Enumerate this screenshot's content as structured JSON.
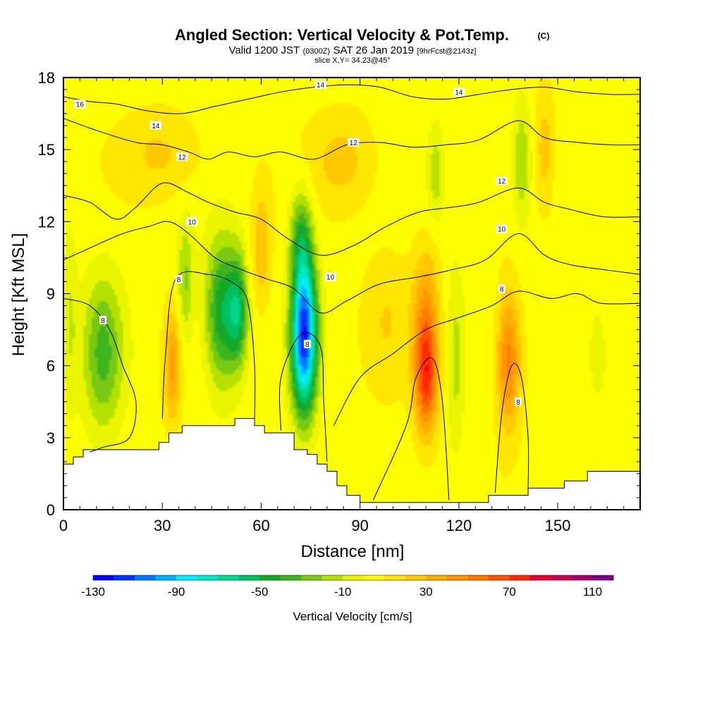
{
  "title": {
    "main": "Angled Section: Vertical Velocity & Pot.Temp.",
    "units": "(C)",
    "valid_prefix": "Valid 1200 JST",
    "valid_z": "(0300Z)",
    "valid_date": "SAT 26 Jan 2019",
    "forecast": "[9hrFcst@2143z]",
    "slice": "slice X,Y= 34.23@45°"
  },
  "chart_data": {
    "type": "heatmap",
    "xlabel": "Distance [nm]",
    "ylabel": "Height [Kft MSL]",
    "xlim": [
      0,
      175
    ],
    "ylim": [
      0,
      18
    ],
    "x_ticks": [
      0,
      30,
      60,
      90,
      120,
      150
    ],
    "y_ticks": [
      0,
      3,
      6,
      9,
      12,
      15,
      18
    ],
    "colorbar": {
      "title": "Vertical Velocity [cm/s]",
      "tick_labels": [
        "-130",
        "-90",
        "-50",
        "-10",
        "30",
        "70",
        "110"
      ],
      "bin_edges": [
        -130,
        -120,
        -110,
        -100,
        -90,
        -80,
        -70,
        -60,
        -50,
        -40,
        -30,
        -20,
        -10,
        0,
        10,
        20,
        30,
        40,
        50,
        60,
        70,
        80,
        90,
        100,
        110,
        120
      ],
      "colors": [
        "#0000ff",
        "#0033ff",
        "#0077ff",
        "#00b0ff",
        "#00eeff",
        "#00e8c8",
        "#00d890",
        "#00c060",
        "#14a828",
        "#3cb41e",
        "#78c814",
        "#b4e100",
        "#ebf500",
        "#ffff00",
        "#ffe600",
        "#ffc800",
        "#ffaf00",
        "#ff9600",
        "#ff7800",
        "#ff5000",
        "#ff2800",
        "#e6002d",
        "#c80055",
        "#a00069",
        "#780082"
      ]
    },
    "vertical_velocity_features": [
      {
        "x": 12,
        "y": 6.5,
        "sx": 6,
        "sy": 3.2,
        "value": -38
      },
      {
        "x": 33,
        "y": 6,
        "sx": 2.5,
        "sy": 2.3,
        "value": 35
      },
      {
        "x": 37,
        "y": 9.5,
        "sx": 2.5,
        "sy": 2.5,
        "value": -28
      },
      {
        "x": 48,
        "y": 8.2,
        "sx": 5,
        "sy": 3,
        "value": -55
      },
      {
        "x": 53,
        "y": 8.3,
        "sx": 3,
        "sy": 2.3,
        "value": -48
      },
      {
        "x": 73,
        "y": 7.3,
        "sx": 3.8,
        "sy": 3.2,
        "value": -125
      },
      {
        "x": 72,
        "y": 11.5,
        "sx": 3.5,
        "sy": 2,
        "value": -35
      },
      {
        "x": 60,
        "y": 11,
        "sx": 3,
        "sy": 2.5,
        "value": 22
      },
      {
        "x": 85,
        "y": 14.5,
        "sx": 10,
        "sy": 2,
        "value": 18
      },
      {
        "x": 30,
        "y": 14.8,
        "sx": 12,
        "sy": 1.8,
        "value": 16
      },
      {
        "x": 110,
        "y": 5.5,
        "sx": 3.5,
        "sy": 2.3,
        "value": 65
      },
      {
        "x": 110,
        "y": 8.5,
        "sx": 4,
        "sy": 2.5,
        "value": 30
      },
      {
        "x": 119,
        "y": 6.2,
        "sx": 2.5,
        "sy": 4,
        "value": -18
      },
      {
        "x": 113,
        "y": 14,
        "sx": 2.5,
        "sy": 2,
        "value": -22
      },
      {
        "x": 135,
        "y": 6.2,
        "sx": 3.5,
        "sy": 2.8,
        "value": 48
      },
      {
        "x": 139,
        "y": 14.5,
        "sx": 3,
        "sy": 2.5,
        "value": -25
      },
      {
        "x": 146,
        "y": 15,
        "sx": 3,
        "sy": 2.5,
        "value": 20
      },
      {
        "x": 162,
        "y": 6.5,
        "sx": 3,
        "sy": 2,
        "value": -15
      },
      {
        "x": 2,
        "y": 8,
        "sx": 2,
        "sy": 4,
        "value": -15
      },
      {
        "x": 98,
        "y": 8,
        "sx": 7,
        "sy": 3,
        "value": 12
      }
    ],
    "terrain_steps": [
      [
        0,
        1.9
      ],
      [
        3,
        2.2
      ],
      [
        6,
        2.5
      ],
      [
        10,
        2.5
      ],
      [
        15,
        2.5
      ],
      [
        20,
        2.5
      ],
      [
        25,
        2.5
      ],
      [
        29,
        2.8
      ],
      [
        32,
        3.2
      ],
      [
        36,
        3.5
      ],
      [
        40,
        3.5
      ],
      [
        45,
        3.5
      ],
      [
        52,
        3.8
      ],
      [
        58,
        3.5
      ],
      [
        61,
        3.2
      ],
      [
        65,
        3.2
      ],
      [
        70,
        2.5
      ],
      [
        74,
        2.3
      ],
      [
        77,
        1.9
      ],
      [
        80,
        1.6
      ],
      [
        83,
        1.0
      ],
      [
        86,
        0.6
      ],
      [
        90,
        0.3
      ],
      [
        95,
        0.3
      ],
      [
        100,
        0.3
      ],
      [
        105,
        0.3
      ],
      [
        110,
        0.3
      ],
      [
        120,
        0.3
      ],
      [
        129,
        0.6
      ],
      [
        135,
        0.6
      ],
      [
        141,
        0.9
      ],
      [
        152,
        1.2
      ],
      [
        159,
        1.6
      ],
      [
        175,
        1.6
      ]
    ],
    "pot_temp_contours": [
      {
        "level": "8",
        "points": [
          [
            0,
            8.8
          ],
          [
            8,
            8.5
          ],
          [
            14,
            7.5
          ],
          [
            18,
            6
          ],
          [
            22,
            4.5
          ],
          [
            20,
            3
          ],
          [
            12,
            2.6
          ],
          [
            8,
            2.4
          ]
        ]
      },
      {
        "level": "8",
        "points": [
          [
            30,
            3.8
          ],
          [
            31,
            6.5
          ],
          [
            34,
            9.6
          ],
          [
            44,
            9.8
          ],
          [
            52,
            9.4
          ],
          [
            56,
            8.6
          ],
          [
            58,
            6
          ],
          [
            58,
            3.8
          ]
        ]
      },
      {
        "level": "8",
        "points": [
          [
            66,
            3.3
          ],
          [
            66,
            5.5
          ],
          [
            72,
            7.3
          ],
          [
            78,
            6.8
          ],
          [
            79,
            4.5
          ],
          [
            80,
            2
          ]
        ]
      },
      {
        "level": "8",
        "points": [
          [
            82,
            3.5
          ],
          [
            90,
            5.5
          ],
          [
            100,
            6.5
          ],
          [
            110,
            7.5
          ],
          [
            120,
            8
          ],
          [
            130,
            8.5
          ],
          [
            138,
            9.1
          ],
          [
            148,
            8.8
          ],
          [
            156,
            9
          ],
          [
            163,
            8.6
          ],
          [
            175,
            8.6
          ]
        ]
      },
      {
        "level": "8",
        "points": [
          [
            94,
            0.4
          ],
          [
            104,
            3.5
          ],
          [
            107,
            5.5
          ],
          [
            112,
            6.3
          ],
          [
            115,
            4.5
          ],
          [
            117,
            0.4
          ]
        ]
      },
      {
        "level": "8",
        "points": [
          [
            131,
            0.7
          ],
          [
            133,
            4
          ],
          [
            136,
            6
          ],
          [
            139,
            5.5
          ],
          [
            141,
            3
          ],
          [
            141,
            0.9
          ]
        ]
      },
      {
        "level": "10",
        "points": [
          [
            0,
            10.4
          ],
          [
            8,
            10.9
          ],
          [
            18,
            11.5
          ],
          [
            26,
            11.8
          ],
          [
            32,
            12
          ],
          [
            38,
            11.5
          ],
          [
            46,
            10.5
          ],
          [
            54,
            10
          ],
          [
            62,
            9.6
          ],
          [
            70,
            9.2
          ],
          [
            78,
            8.2
          ],
          [
            86,
            8.7
          ],
          [
            96,
            9.4
          ],
          [
            108,
            9.7
          ],
          [
            118,
            10
          ],
          [
            128,
            10.4
          ],
          [
            138,
            11.5
          ],
          [
            146,
            10.6
          ],
          [
            154,
            10.2
          ],
          [
            164,
            10
          ],
          [
            175,
            9.8
          ]
        ]
      },
      {
        "level": "12",
        "points": [
          [
            0,
            13.1
          ],
          [
            8,
            12.8
          ],
          [
            16,
            12.1
          ],
          [
            22,
            12.6
          ],
          [
            30,
            13.6
          ],
          [
            38,
            13.2
          ],
          [
            44,
            12.8
          ],
          [
            52,
            12.4
          ],
          [
            60,
            12.1
          ],
          [
            68,
            11.3
          ],
          [
            78,
            10.6
          ],
          [
            88,
            11
          ],
          [
            98,
            11.8
          ],
          [
            108,
            12.4
          ],
          [
            118,
            12.6
          ],
          [
            126,
            12.8
          ],
          [
            138,
            13.4
          ],
          [
            146,
            12.8
          ],
          [
            154,
            12.5
          ],
          [
            164,
            12.2
          ],
          [
            175,
            12.2
          ]
        ]
      },
      {
        "level": "14",
        "points": [
          [
            0,
            16.3
          ],
          [
            10,
            15.8
          ],
          [
            22,
            15.3
          ],
          [
            30,
            15.2
          ],
          [
            38,
            14.9
          ],
          [
            44,
            14.6
          ],
          [
            50,
            14.9
          ],
          [
            58,
            14.7
          ],
          [
            66,
            14.9
          ],
          [
            76,
            14.6
          ],
          [
            86,
            15.2
          ],
          [
            96,
            15.3
          ],
          [
            106,
            15.1
          ],
          [
            116,
            15.2
          ],
          [
            126,
            15.4
          ],
          [
            138,
            16.2
          ],
          [
            146,
            15.5
          ],
          [
            156,
            15.3
          ],
          [
            166,
            15.2
          ],
          [
            175,
            15.2
          ]
        ]
      },
      {
        "level": "16",
        "points": [
          [
            0,
            17.2
          ],
          [
            8,
            17
          ],
          [
            16,
            16.9
          ],
          [
            26,
            16.6
          ],
          [
            36,
            16.5
          ],
          [
            46,
            16.8
          ],
          [
            56,
            17.1
          ],
          [
            66,
            17.4
          ],
          [
            76,
            17.6
          ],
          [
            86,
            17.7
          ],
          [
            96,
            17.6
          ],
          [
            106,
            17.2
          ],
          [
            116,
            17.1
          ],
          [
            126,
            17.3
          ],
          [
            136,
            17.5
          ],
          [
            146,
            17.6
          ],
          [
            156,
            17.4
          ],
          [
            166,
            17.3
          ],
          [
            175,
            17.3
          ]
        ]
      }
    ],
    "contour_labels": [
      {
        "text": "16",
        "x": 5,
        "y": 16.9
      },
      {
        "text": "14",
        "x": 28,
        "y": 16.0
      },
      {
        "text": "14",
        "x": 78,
        "y": 17.7
      },
      {
        "text": "14",
        "x": 120,
        "y": 17.4
      },
      {
        "text": "12",
        "x": 36,
        "y": 14.7
      },
      {
        "text": "12",
        "x": 88,
        "y": 15.3
      },
      {
        "text": "12",
        "x": 133,
        "y": 13.7
      },
      {
        "text": "10",
        "x": 39,
        "y": 12.0
      },
      {
        "text": "10",
        "x": 81,
        "y": 9.7
      },
      {
        "text": "10",
        "x": 133,
        "y": 11.7
      },
      {
        "text": "8",
        "x": 12,
        "y": 7.9
      },
      {
        "text": "8",
        "x": 35,
        "y": 9.6
      },
      {
        "text": "8",
        "x": 74,
        "y": 6.9
      },
      {
        "text": "8",
        "x": 133,
        "y": 9.2
      },
      {
        "text": "8",
        "x": 138,
        "y": 4.5
      }
    ]
  }
}
